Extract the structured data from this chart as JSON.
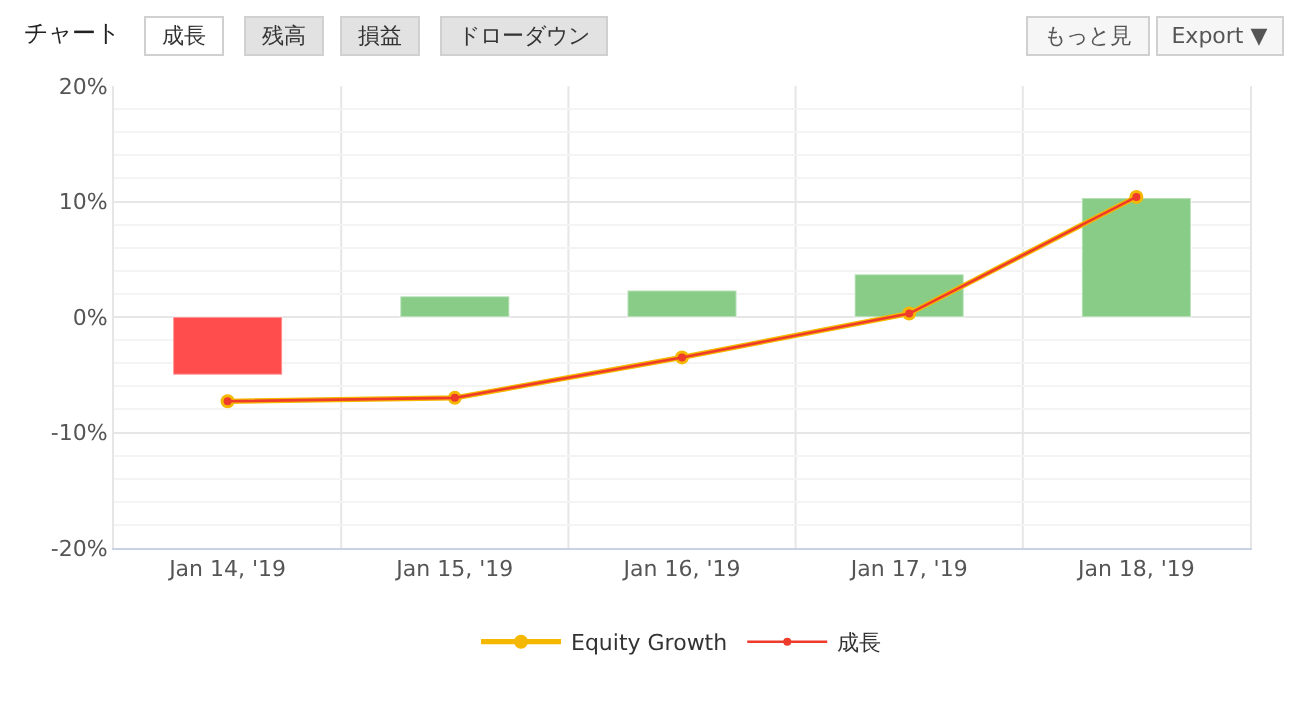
{
  "chart_data": {
    "type": "bar",
    "title": "チャート",
    "categories": [
      "Jan 14, '19",
      "Jan 15, '19",
      "Jan 16, '19",
      "Jan 17, '19",
      "Jan 18, '19"
    ],
    "series": [
      {
        "colors": [
          "#ff4d4d",
          "#88cc88",
          "#88cc88",
          "#88cc88",
          "#88cc88"
        ],
        "values": [
          -5.0,
          1.8,
          2.3,
          3.7,
          10.3
        ]
      },
      {
        "type": "line",
        "name": "Equity Growth",
        "color": "#f5b800",
        "values": [
          -7.3,
          -7.0,
          -3.5,
          0.3,
          10.4
        ]
      },
      {
        "type": "line",
        "name": "成長",
        "color": "#ee3b2b",
        "values": [
          -7.3,
          -7.0,
          -3.5,
          0.3,
          10.4
        ]
      }
    ],
    "ylim": [
      -20,
      20
    ],
    "yticks": [
      {
        "value": -20,
        "label": "-20%"
      },
      {
        "value": -10,
        "label": "-10%"
      },
      {
        "value": 0,
        "label": "0%"
      },
      {
        "value": 10,
        "label": "10%"
      },
      {
        "value": 20,
        "label": "20%"
      }
    ],
    "grid": true,
    "legend": "bottom",
    "marker": "circle",
    "line_style": "solid",
    "annotations": [
      "成長",
      "残高",
      "損益",
      "ドローダウン",
      "もっと見",
      "Export ▼"
    ]
  }
}
